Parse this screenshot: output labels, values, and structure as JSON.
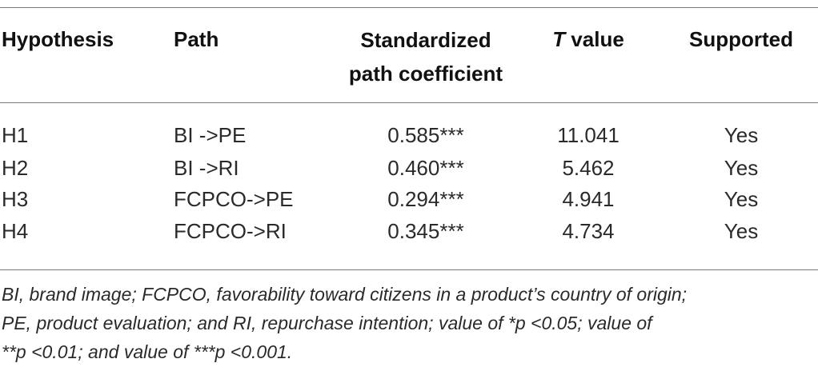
{
  "table": {
    "headers": {
      "hypothesis": "Hypothesis",
      "path": "Path",
      "coefficient_line1": "Standardized",
      "coefficient_line2": "path coefficient",
      "t_italic": "T",
      "t_rest": " value",
      "supported": "Supported"
    },
    "rows": [
      {
        "hypothesis": "H1",
        "path": "BI ->PE",
        "coefficient": "0.585***",
        "t_value": "11.041",
        "supported": "Yes"
      },
      {
        "hypothesis": "H2",
        "path": "BI ->RI",
        "coefficient": "0.460***",
        "t_value": "5.462",
        "supported": "Yes"
      },
      {
        "hypothesis": "H3",
        "path": "FCPCO->PE",
        "coefficient": "0.294***",
        "t_value": "4.941",
        "supported": "Yes"
      },
      {
        "hypothesis": "H4",
        "path": "FCPCO->RI",
        "coefficient": "0.345***",
        "t_value": "4.734",
        "supported": "Yes"
      }
    ]
  },
  "footnote": {
    "line1": "BI, brand image; FCPCO, favorability toward citizens in a product’s country of origin;",
    "line2": "PE, product evaluation; and RI, repurchase intention; value of *p <0.05; value of",
    "line3": "**p <0.01; and value of ***p <0.001."
  }
}
